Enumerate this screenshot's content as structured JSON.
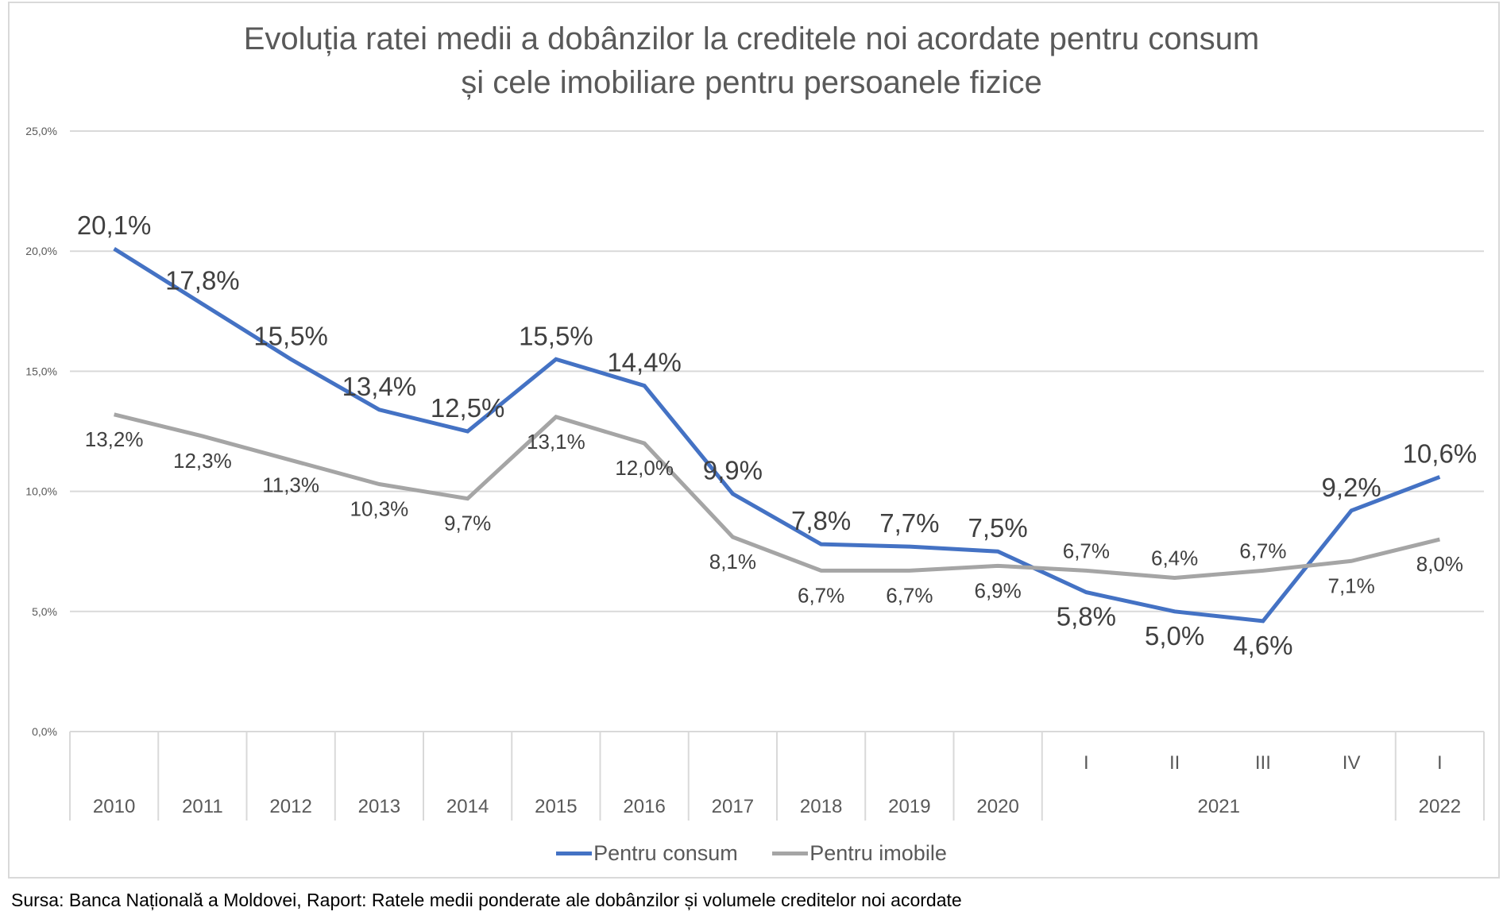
{
  "title_lines": [
    "Evoluția ratei medii a dobânzilor la creditele noi acordate pentru consum",
    "și cele imobiliare pentru persoanele fizice"
  ],
  "source": "Sursa: Banca Națională a Moldovei, Raport: Ratele medii ponderate ale dobânzilor și volumele creditelor noi acordate",
  "chart_data": {
    "type": "line",
    "title": "Evoluția ratei medii a dobânzilor la creditele noi acordate pentru consum și cele imobiliare pentru persoanele fizice",
    "xlabel": "",
    "ylabel": "",
    "ylim": [
      0,
      25
    ],
    "yticks": [
      0,
      5,
      10,
      15,
      20,
      25
    ],
    "ytick_labels": [
      "0,0%",
      "5,0%",
      "10,0%",
      "15,0%",
      "20,0%",
      "25,0%"
    ],
    "grid": true,
    "legend_position": "bottom",
    "categories": [
      "2010",
      "2011",
      "2012",
      "2013",
      "2014",
      "2015",
      "2016",
      "2017",
      "2018",
      "2019",
      "2020",
      "2021 I",
      "2021 II",
      "2021 III",
      "2021 IV",
      "2022 I"
    ],
    "x_level1": [
      "",
      "",
      "",
      "",
      "",
      "",
      "",
      "",
      "",
      "",
      "",
      "I",
      "II",
      "III",
      "IV",
      "I"
    ],
    "x_level2": [
      {
        "label": "2010",
        "span": 1
      },
      {
        "label": "2011",
        "span": 1
      },
      {
        "label": "2012",
        "span": 1
      },
      {
        "label": "2013",
        "span": 1
      },
      {
        "label": "2014",
        "span": 1
      },
      {
        "label": "2015",
        "span": 1
      },
      {
        "label": "2016",
        "span": 1
      },
      {
        "label": "2017",
        "span": 1
      },
      {
        "label": "2018",
        "span": 1
      },
      {
        "label": "2019",
        "span": 1
      },
      {
        "label": "2020",
        "span": 1
      },
      {
        "label": "2021",
        "span": 4
      },
      {
        "label": "2022",
        "span": 1
      }
    ],
    "series": [
      {
        "name": "Pentru consum",
        "color": "#4472c4",
        "values": [
          20.1,
          17.8,
          15.5,
          13.4,
          12.5,
          15.5,
          14.4,
          9.9,
          7.8,
          7.7,
          7.5,
          5.8,
          5.0,
          4.6,
          9.2,
          10.6
        ],
        "labels": [
          "20,1%",
          "17,8%",
          "15,5%",
          "13,4%",
          "12,5%",
          "15,5%",
          "14,4%",
          "9,9%",
          "7,8%",
          "7,7%",
          "7,5%",
          "5,8%",
          "5,0%",
          "4,6%",
          "9,2%",
          "10,6%"
        ],
        "label_side": [
          "above",
          "above",
          "above",
          "above",
          "above",
          "above",
          "above",
          "above",
          "above",
          "above",
          "above",
          "below",
          "below",
          "below",
          "above",
          "above"
        ]
      },
      {
        "name": "Pentru imobile",
        "color": "#a5a5a5",
        "values": [
          13.2,
          12.3,
          11.3,
          10.3,
          9.7,
          13.1,
          12.0,
          8.1,
          6.7,
          6.7,
          6.9,
          6.7,
          6.4,
          6.7,
          7.1,
          8.0
        ],
        "labels": [
          "13,2%",
          "12,3%",
          "11,3%",
          "10,3%",
          "9,7%",
          "13,1%",
          "12,0%",
          "8,1%",
          "6,7%",
          "6,7%",
          "6,9%",
          "6,7%",
          "6,4%",
          "6,7%",
          "7,1%",
          "8,0%"
        ],
        "label_side": [
          "below",
          "below",
          "below",
          "below",
          "below",
          "below",
          "below",
          "below",
          "below",
          "below",
          "below",
          "above",
          "above",
          "above",
          "below",
          "below"
        ]
      }
    ]
  }
}
